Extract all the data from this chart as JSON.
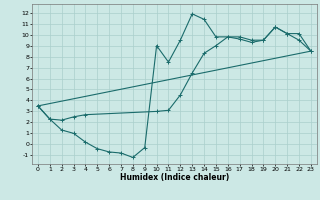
{
  "xlabel": "Humidex (Indice chaleur)",
  "xlim": [
    -0.5,
    23.5
  ],
  "ylim": [
    -1.8,
    12.8
  ],
  "xticks": [
    0,
    1,
    2,
    3,
    4,
    5,
    6,
    7,
    8,
    9,
    10,
    11,
    12,
    13,
    14,
    15,
    16,
    17,
    18,
    19,
    20,
    21,
    22,
    23
  ],
  "yticks": [
    -1,
    0,
    1,
    2,
    3,
    4,
    5,
    6,
    7,
    8,
    9,
    10,
    11,
    12
  ],
  "bg_color": "#cce8e5",
  "grid_color": "#aacfcc",
  "line_color": "#1a6b6b",
  "line1_x": [
    0,
    1,
    2,
    3,
    4,
    5,
    6,
    7,
    8,
    9,
    10,
    11,
    12,
    13,
    14,
    15,
    16,
    17,
    18,
    19,
    20,
    21,
    22,
    23
  ],
  "line1_y": [
    3.5,
    2.3,
    1.3,
    1.0,
    0.2,
    -0.4,
    -0.7,
    -0.8,
    -1.2,
    -0.3,
    9.0,
    7.5,
    9.5,
    11.9,
    11.4,
    9.8,
    9.8,
    9.6,
    9.3,
    9.5,
    10.7,
    10.1,
    10.1,
    8.5
  ],
  "line2_x": [
    0,
    1,
    2,
    3,
    4,
    10,
    11,
    12,
    13,
    14,
    15,
    16,
    17,
    18,
    19,
    20,
    21,
    22,
    23
  ],
  "line2_y": [
    3.5,
    2.3,
    2.2,
    2.5,
    2.7,
    3.0,
    3.1,
    4.5,
    6.5,
    8.3,
    9.0,
    9.8,
    9.8,
    9.5,
    9.5,
    10.7,
    10.1,
    9.5,
    8.5
  ],
  "line3_x": [
    0,
    23
  ],
  "line3_y": [
    3.5,
    8.5
  ]
}
